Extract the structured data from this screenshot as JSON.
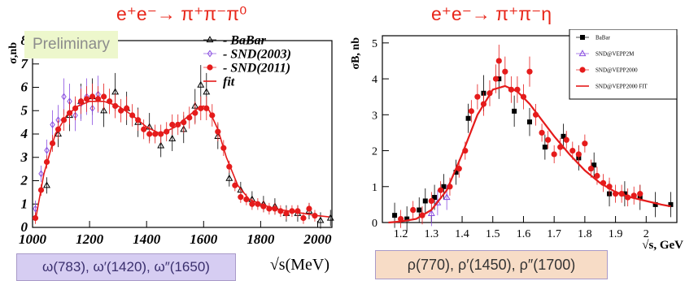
{
  "titles": {
    "left": "e⁺e⁻→ π⁺π⁻π⁰",
    "right": "e⁺e⁻→ π⁺π⁻η"
  },
  "badge": "Preliminary",
  "boxes": {
    "left": "ω(783), ω′(1420), ω″(1650)",
    "right": "ρ(770), ρ′(1450), ρ″(1700)"
  },
  "colors": {
    "title": "#e8261a",
    "red": "#e51b1b",
    "violet": "#8a4fe0",
    "black": "#000000"
  },
  "chart_data": [
    {
      "type": "scatter",
      "xlabel": "√s(MeV)",
      "ylabel": "σ,nb",
      "xlim": [
        1000,
        2050
      ],
      "ylim": [
        0,
        8
      ],
      "xticks": [
        1000,
        1200,
        1400,
        1600,
        1800,
        2000
      ],
      "yticks": [
        0,
        1,
        2,
        3,
        4,
        5,
        6,
        7,
        8
      ],
      "grid": false,
      "legend_position": "top-right",
      "series": [
        {
          "name": "- BaBar",
          "marker": "open-triangle",
          "color": "#000000",
          "x": [
            1050,
            1090,
            1130,
            1170,
            1210,
            1250,
            1290,
            1330,
            1370,
            1410,
            1450,
            1490,
            1530,
            1570,
            1590,
            1610,
            1650,
            1690,
            1730,
            1770,
            1810,
            1850,
            1890,
            1930,
            1970,
            2010,
            2045
          ],
          "y": [
            1.8,
            4.0,
            4.8,
            5.4,
            5.6,
            5.0,
            5.8,
            5.1,
            4.5,
            4.3,
            3.5,
            3.8,
            4.2,
            5.2,
            6.1,
            5.8,
            3.9,
            2.1,
            1.6,
            1.2,
            1.0,
            0.9,
            0.6,
            0.6,
            0.7,
            0.3,
            0.4
          ]
        },
        {
          "name": "- SND(2003)",
          "marker": "open-diamond",
          "color": "#8a4fe0",
          "x": [
            1010,
            1030,
            1050,
            1070,
            1090,
            1110,
            1130,
            1150,
            1170,
            1190,
            1210,
            1230
          ],
          "y": [
            0.8,
            2.3,
            3.3,
            4.4,
            4.6,
            5.6,
            5.4,
            4.8,
            5.3,
            5.6,
            5.1,
            5.7
          ]
        },
        {
          "name": "- SND(2011)",
          "marker": "filled-circle",
          "color": "#e51b1b",
          "x": [
            1010,
            1030,
            1050,
            1070,
            1090,
            1110,
            1130,
            1150,
            1170,
            1190,
            1210,
            1230,
            1250,
            1270,
            1290,
            1310,
            1330,
            1350,
            1370,
            1390,
            1410,
            1430,
            1450,
            1470,
            1490,
            1510,
            1530,
            1550,
            1570,
            1590,
            1610,
            1630,
            1650,
            1670,
            1690,
            1710,
            1730,
            1750,
            1770,
            1790,
            1810,
            1830,
            1850,
            1870,
            1890,
            1910,
            1930,
            1950,
            1970,
            1990
          ],
          "y": [
            0.4,
            1.6,
            2.8,
            3.6,
            4.2,
            4.6,
            4.9,
            5.1,
            5.4,
            5.5,
            5.6,
            5.5,
            5.6,
            5.4,
            5.2,
            5.0,
            5.1,
            4.8,
            4.6,
            4.2,
            4.0,
            4.0,
            4.0,
            4.1,
            4.4,
            4.4,
            4.5,
            4.7,
            4.9,
            5.1,
            5.1,
            4.8,
            4.1,
            3.4,
            2.6,
            1.8,
            1.3,
            1.2,
            1.0,
            1.0,
            0.9,
            0.8,
            0.8,
            0.7,
            0.6,
            0.7,
            0.7,
            0.4,
            0.8,
            0.5
          ]
        },
        {
          "name": "fit",
          "type": "line",
          "color": "#e51b1b",
          "x": [
            1010,
            1040,
            1080,
            1120,
            1160,
            1200,
            1250,
            1300,
            1350,
            1400,
            1450,
            1500,
            1550,
            1580,
            1600,
            1620,
            1650,
            1680,
            1720,
            1760,
            1800,
            1850,
            1900,
            1950,
            2000,
            2040
          ],
          "y": [
            0.3,
            2.3,
            4.0,
            4.8,
            5.2,
            5.4,
            5.4,
            5.2,
            4.8,
            4.3,
            4.0,
            4.3,
            4.8,
            5.1,
            5.2,
            5.0,
            4.2,
            3.0,
            1.8,
            1.2,
            1.0,
            0.8,
            0.7,
            0.6,
            0.5,
            0.45
          ]
        }
      ]
    },
    {
      "type": "scatter",
      "xlabel": "√s, GeV",
      "ylabel": "σB, nb",
      "xlim": [
        1.14,
        2.1
      ],
      "ylim": [
        0,
        5.2
      ],
      "xticks": [
        1.2,
        1.3,
        1.4,
        1.5,
        1.6,
        1.7,
        1.8,
        1.9,
        2
      ],
      "yticks": [
        0,
        1,
        2,
        3,
        4,
        5
      ],
      "grid": false,
      "legend_position": "top-right",
      "series": [
        {
          "name": "BaBar",
          "marker": "filled-square",
          "color": "#000000",
          "x": [
            1.18,
            1.22,
            1.26,
            1.28,
            1.31,
            1.34,
            1.38,
            1.42,
            1.47,
            1.52,
            1.57,
            1.62,
            1.67,
            1.73,
            1.78,
            1.83,
            1.88,
            1.93,
            1.98,
            2.03,
            2.08
          ],
          "y": [
            0.2,
            0.1,
            0.35,
            0.6,
            0.7,
            1.0,
            1.4,
            2.9,
            3.6,
            4.0,
            3.1,
            2.8,
            2.1,
            2.4,
            1.8,
            1.6,
            0.8,
            0.8,
            0.7,
            0.5,
            0.5
          ]
        },
        {
          "name": "SND@VEPP2M",
          "marker": "open-triangle",
          "color": "#8a4fe0",
          "x": [
            1.3,
            1.32,
            1.35
          ],
          "y": [
            0.25,
            0.55,
            0.7
          ]
        },
        {
          "name": "SND@VEPP2000",
          "marker": "filled-circle",
          "color": "#e51b1b",
          "x": [
            1.2,
            1.24,
            1.27,
            1.3,
            1.33,
            1.36,
            1.39,
            1.41,
            1.43,
            1.45,
            1.47,
            1.49,
            1.51,
            1.52,
            1.54,
            1.56,
            1.58,
            1.6,
            1.62,
            1.64,
            1.66,
            1.68,
            1.7,
            1.72,
            1.74,
            1.76,
            1.78,
            1.8,
            1.82,
            1.84,
            1.86,
            1.88,
            1.9,
            1.92,
            1.94,
            1.96,
            1.98
          ],
          "y": [
            0.1,
            0.35,
            0.2,
            0.6,
            0.9,
            1.0,
            1.5,
            2.0,
            3.1,
            3.5,
            3.3,
            3.6,
            4.0,
            4.5,
            4.2,
            3.7,
            3.7,
            3.5,
            4.2,
            3.0,
            2.5,
            2.3,
            1.9,
            2.1,
            2.3,
            2.0,
            1.9,
            2.2,
            1.5,
            1.3,
            1.1,
            1.0,
            0.8,
            0.8,
            0.7,
            0.75,
            0.8
          ]
        },
        {
          "name": "SND@VEPP2000 FIT",
          "type": "line",
          "color": "#e51b1b",
          "x": [
            1.16,
            1.2,
            1.25,
            1.3,
            1.35,
            1.4,
            1.45,
            1.5,
            1.54,
            1.58,
            1.62,
            1.66,
            1.7,
            1.75,
            1.8,
            1.85,
            1.9,
            1.95,
            2.0,
            2.05,
            2.08
          ],
          "y": [
            0.0,
            0.03,
            0.1,
            0.35,
            0.9,
            1.9,
            3.0,
            3.7,
            3.8,
            3.65,
            3.3,
            2.85,
            2.4,
            1.9,
            1.45,
            1.1,
            0.85,
            0.7,
            0.6,
            0.5,
            0.45
          ]
        }
      ]
    }
  ]
}
